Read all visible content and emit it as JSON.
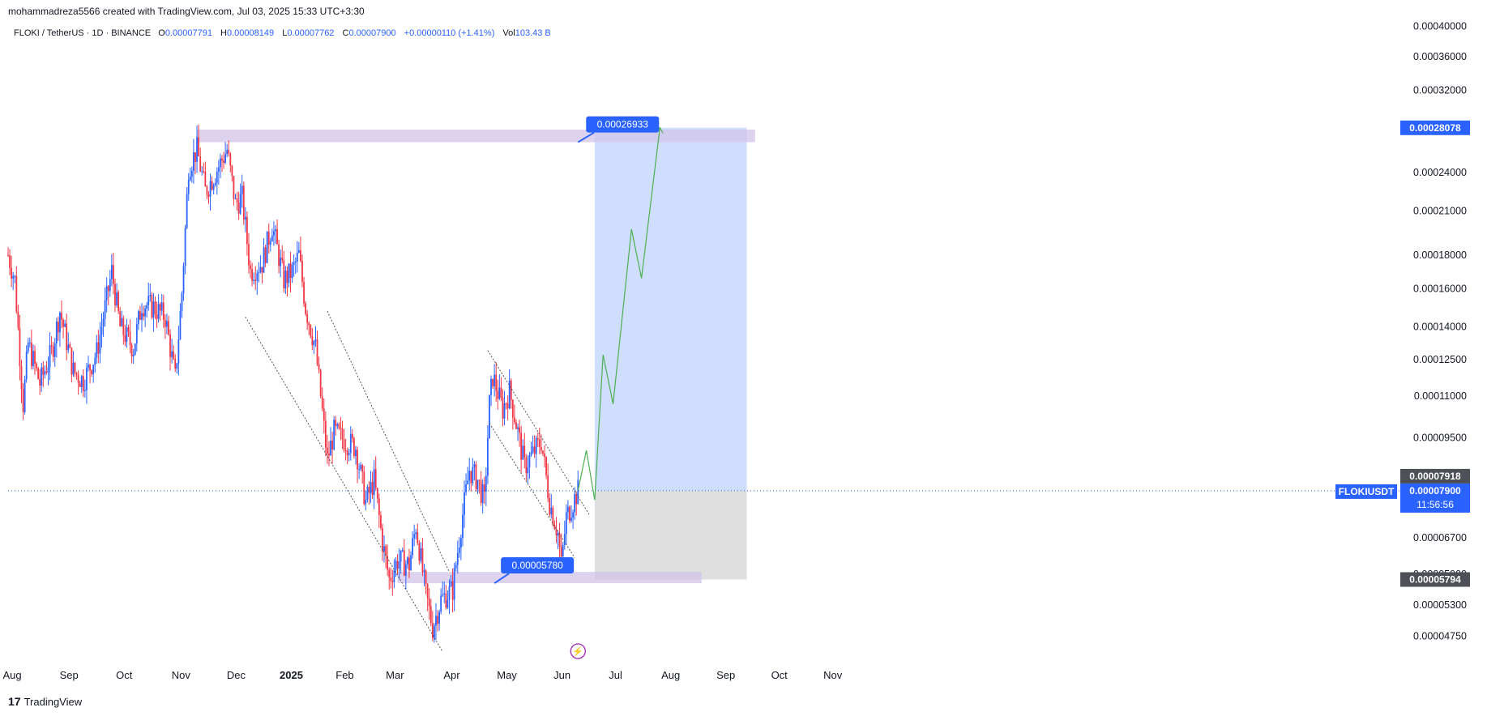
{
  "header": {
    "credit": "mohammadreza5566 created with TradingView.com, Jul 03, 2025 15:33 UTC+3:30"
  },
  "symbol_bar": {
    "title": "FLOKI / TetherUS · 1D · BINANCE",
    "o_label": "O",
    "o_value": "0.00007791",
    "h_label": "H",
    "h_value": "0.00008149",
    "l_label": "L",
    "l_value": "0.00007762",
    "c_label": "C",
    "c_value": "0.00007900",
    "change": "+0.00000110 (+1.41%)",
    "vol_label": "Vol",
    "vol_value": "103.43 B"
  },
  "footer": {
    "brand": "TradingView",
    "logo_glyph": "17"
  },
  "colors": {
    "up": "#2962ff",
    "down": "#f23645",
    "zone": "#d1c4e9",
    "target_box": "#c5d8fc",
    "stop_box": "#d9d9d9",
    "projection": "#4caf50",
    "label_bg": "#2962ff",
    "grey_tag": "#4e5058"
  },
  "chart_data": {
    "type": "candlestick",
    "symbol": "FLOKIUSDT",
    "ylim": [
      4.25e-05,
      0.00041
    ],
    "y_scale": "log",
    "x_tick_labels": [
      "Aug",
      "Sep",
      "Oct",
      "Nov",
      "Dec",
      "2025",
      "Feb",
      "Mar",
      "Apr",
      "May",
      "Jun",
      "Jul",
      "Aug",
      "Sep",
      "Oct",
      "Nov"
    ],
    "y_tick_labels": [
      "0.00040000",
      "0.00036000",
      "0.00032000",
      "0.00028000",
      "0.00024000",
      "0.00021000",
      "0.00018000",
      "0.00016000",
      "0.00014000",
      "0.00012500",
      "0.00011000",
      "0.00009500",
      "0.00007918",
      "0.00006700",
      "0.00005900",
      "0.00005300",
      "0.00004750"
    ],
    "y_tick_values": [
      0.0004,
      0.00036,
      0.00032,
      0.00028,
      0.00024,
      0.00021,
      0.00018,
      0.00016,
      0.00014,
      0.000125,
      0.00011,
      9.5e-05,
      7.918e-05,
      6.7e-05,
      5.9e-05,
      5.3e-05,
      4.75e-05
    ],
    "price_path": [
      [
        "2024-07-27",
        0.00018
      ],
      [
        "2024-07-31",
        0.000165
      ],
      [
        "2024-08-05",
        0.000107
      ],
      [
        "2024-08-08",
        0.000132
      ],
      [
        "2024-08-15",
        0.000115
      ],
      [
        "2024-08-22",
        0.000128
      ],
      [
        "2024-08-27",
        0.000148
      ],
      [
        "2024-09-04",
        0.00012
      ],
      [
        "2024-09-10",
        0.000116
      ],
      [
        "2024-09-18",
        0.000128
      ],
      [
        "2024-09-27",
        0.00017
      ],
      [
        "2024-10-02",
        0.00014
      ],
      [
        "2024-10-10",
        0.00013
      ],
      [
        "2024-10-15",
        0.000152
      ],
      [
        "2024-10-22",
        0.00015
      ],
      [
        "2024-10-29",
        0.000145
      ],
      [
        "2024-11-04",
        0.000117
      ],
      [
        "2024-11-08",
        0.000158
      ],
      [
        "2024-11-12",
        0.000245
      ],
      [
        "2024-11-17",
        0.00026
      ],
      [
        "2024-11-22",
        0.000225
      ],
      [
        "2024-11-28",
        0.00024
      ],
      [
        "2024-12-05",
        0.00026
      ],
      [
        "2024-12-10",
        0.000215
      ],
      [
        "2024-12-14",
        0.00022
      ],
      [
        "2024-12-19",
        0.00017
      ],
      [
        "2024-12-26",
        0.000175
      ],
      [
        "2025-01-01",
        0.0002
      ],
      [
        "2025-01-08",
        0.000165
      ],
      [
        "2025-01-13",
        0.00017
      ],
      [
        "2025-01-17",
        0.00018
      ],
      [
        "2025-01-21",
        0.00015
      ],
      [
        "2025-01-27",
        0.00013
      ],
      [
        "2025-02-03",
        8.8e-05
      ],
      [
        "2025-02-07",
        9.7e-05
      ],
      [
        "2025-02-14",
        9.4e-05
      ],
      [
        "2025-02-20",
        9.2e-05
      ],
      [
        "2025-02-26",
        7.6e-05
      ],
      [
        "2025-03-03",
        8.2e-05
      ],
      [
        "2025-03-08",
        6.6e-05
      ],
      [
        "2025-03-12",
        5.8e-05
      ],
      [
        "2025-03-17",
        6.2e-05
      ],
      [
        "2025-03-24",
        6.1e-05
      ],
      [
        "2025-03-28",
        7e-05
      ],
      [
        "2025-04-03",
        5.5e-05
      ],
      [
        "2025-04-07",
        4.9e-05
      ],
      [
        "2025-04-12",
        5.4e-05
      ],
      [
        "2025-04-19",
        5.6e-05
      ],
      [
        "2025-04-24",
        7e-05
      ],
      [
        "2025-04-29",
        8.5e-05
      ],
      [
        "2025-05-04",
        8.2e-05
      ],
      [
        "2025-05-08",
        7.6e-05
      ],
      [
        "2025-05-11",
        0.000107
      ],
      [
        "2025-05-13",
        0.000118
      ],
      [
        "2025-05-19",
        0.000105
      ],
      [
        "2025-05-23",
        0.000112
      ],
      [
        "2025-05-28",
        9.7e-05
      ],
      [
        "2025-06-01",
        8.6e-05
      ],
      [
        "2025-06-06",
        9e-05
      ],
      [
        "2025-06-11",
        9.4e-05
      ],
      [
        "2025-06-16",
        7.6e-05
      ],
      [
        "2025-06-21",
        6.8e-05
      ],
      [
        "2025-06-23",
        6.1e-05
      ],
      [
        "2025-06-26",
        7.2e-05
      ],
      [
        "2025-07-03",
        7.9e-05
      ]
    ],
    "drawings": {
      "resistance_zone": {
        "price_top": 0.000279,
        "price_bottom": 0.000267,
        "x_start": "2024-11-17",
        "x_end": "2025-10-17"
      },
      "support_zone": {
        "price_top": 5.95e-05,
        "price_bottom": 5.72e-05,
        "x_start": "2025-03-17",
        "x_end": "2025-09-15"
      },
      "label_high": "0.00026933",
      "label_low": "0.00005780",
      "long_position": {
        "entry": 7.9e-05,
        "target": 0.00028078,
        "stop": 5.794e-05,
        "x_start": "2025-07-13",
        "x_end": "2025-10-12"
      },
      "projection_path": [
        [
          "2025-07-03",
          7.9e-05
        ],
        [
          "2025-07-08",
          9.1e-05
        ],
        [
          "2025-07-13",
          7.65e-05
        ],
        [
          "2025-07-18",
          0.000127
        ],
        [
          "2025-07-24",
          0.000107
        ],
        [
          "2025-08-04",
          0.000197
        ],
        [
          "2025-08-10",
          0.000166
        ],
        [
          "2025-08-21",
          0.000281
        ]
      ],
      "channels": [
        {
          "from": [
            "2024-12-16",
            0.000145
          ],
          "to": [
            "2025-04-13",
            4.5e-05
          ]
        },
        {
          "from": [
            "2025-02-03",
            0.000148
          ],
          "to": [
            "2025-04-17",
            5.95e-05
          ]
        },
        {
          "from": [
            "2025-05-10",
            0.000129
          ],
          "to": [
            "2025-07-10",
            7.25e-05
          ]
        },
        {
          "from": [
            "2025-05-11",
            0.0001
          ],
          "to": [
            "2025-07-01",
            6.25e-05
          ]
        }
      ]
    },
    "price_labels": {
      "target": "0.00028078",
      "symbol_tag": "FLOKIUSDT",
      "last_price": "0.00007900",
      "countdown": "11:56:56",
      "grey_upper": "0.00007918",
      "grey_lower": "0.00005794"
    }
  }
}
